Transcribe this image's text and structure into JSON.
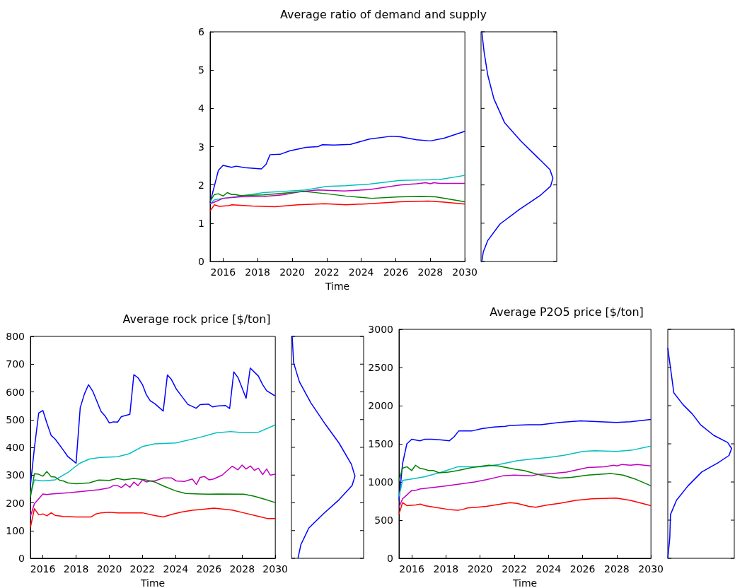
{
  "chart_data": [
    {
      "type": "line",
      "title": "Average ratio of demand and supply",
      "xlabel": "Time",
      "xlim": [
        2015.25,
        2030
      ],
      "xticks": [
        2016,
        2018,
        2020,
        2022,
        2024,
        2026,
        2028,
        2030
      ],
      "ylim": [
        0,
        6
      ],
      "yticks": [
        0,
        1,
        2,
        3,
        4,
        5,
        6
      ],
      "grid": false,
      "series": [
        {
          "color": "#0000ff",
          "x": [
            2015.25,
            2015.73,
            2016,
            2016.49,
            2016.76,
            2017.27,
            2018.22,
            2018.49,
            2018.72,
            2019.3,
            2019.85,
            2020.8,
            2021.48,
            2021.75,
            2022.43,
            2023.38,
            2024.47,
            2025.7,
            2026.25,
            2027.2,
            2028,
            2028.8,
            2030
          ],
          "values": [
            1.54,
            2.38,
            2.51,
            2.46,
            2.49,
            2.45,
            2.42,
            2.54,
            2.79,
            2.8,
            2.89,
            2.98,
            3.0,
            3.05,
            3.04,
            3.06,
            3.2,
            3.27,
            3.26,
            3.18,
            3.15,
            3.22,
            3.4
          ]
        },
        {
          "color": "#00bfbf",
          "x": [
            2015.25,
            2015.5,
            2016,
            2017,
            2018.35,
            2019.44,
            2020.8,
            2022,
            2023.1,
            2024.47,
            2026.25,
            2027.6,
            2028.55,
            2030
          ],
          "values": [
            1.5,
            1.61,
            1.65,
            1.71,
            1.8,
            1.83,
            1.87,
            1.96,
            1.98,
            2.02,
            2.12,
            2.13,
            2.14,
            2.25
          ]
        },
        {
          "color": "#bf00bf",
          "x": [
            2015.25,
            2015.5,
            2016,
            2017,
            2018.35,
            2019.44,
            2020.4,
            2021.5,
            2023,
            2024.47,
            2026.25,
            2027.2,
            2027.74,
            2028,
            2028.2,
            2028.55,
            2030
          ],
          "values": [
            1.51,
            1.55,
            1.65,
            1.69,
            1.7,
            1.74,
            1.82,
            1.87,
            1.84,
            1.88,
            2.0,
            2.03,
            2.06,
            2.03,
            2.06,
            2.04,
            2.04
          ]
        },
        {
          "color": "#008000",
          "x": [
            2015.25,
            2015.5,
            2015.73,
            2016,
            2016.25,
            2016.49,
            2016.72,
            2017,
            2018.35,
            2019.44,
            2020.67,
            2022,
            2023.1,
            2024.6,
            2026.25,
            2027.5,
            2028.3,
            2030
          ],
          "values": [
            1.57,
            1.75,
            1.77,
            1.71,
            1.8,
            1.75,
            1.75,
            1.72,
            1.74,
            1.78,
            1.83,
            1.77,
            1.71,
            1.65,
            1.69,
            1.7,
            1.69,
            1.56
          ]
        },
        {
          "color": "#ff0000",
          "x": [
            2015.25,
            2015.5,
            2015.77,
            2016.31,
            2016.52,
            2017.67,
            2019,
            2020.35,
            2021.9,
            2023.1,
            2024.47,
            2026.25,
            2027.9,
            2028.8,
            2030
          ],
          "values": [
            1.32,
            1.48,
            1.44,
            1.46,
            1.48,
            1.45,
            1.43,
            1.48,
            1.51,
            1.48,
            1.51,
            1.56,
            1.58,
            1.55,
            1.5
          ]
        }
      ]
    },
    {
      "type": "line",
      "title": "Average rock price [$/ton]",
      "xlabel": "Time",
      "xlim": [
        2015.25,
        2030
      ],
      "xticks": [
        2016,
        2018,
        2020,
        2022,
        2024,
        2026,
        2028,
        2030
      ],
      "ylim": [
        0,
        800
      ],
      "yticks": [
        0,
        100,
        200,
        300,
        400,
        500,
        600,
        700,
        800
      ],
      "grid": false,
      "series": [
        {
          "color": "#0000ff",
          "x": [
            2015.25,
            2015.49,
            2015.75,
            2016,
            2016.24,
            2016.5,
            2016.74,
            2017.23,
            2017.5,
            2018,
            2018.25,
            2018.5,
            2018.75,
            2019,
            2019.5,
            2019.75,
            2020,
            2020.25,
            2020.5,
            2020.73,
            2021.24,
            2021.48,
            2021.73,
            2022,
            2022.23,
            2022.47,
            2022.75,
            2023.25,
            2023.5,
            2023.74,
            2024.03,
            2024.24,
            2024.73,
            2025.23,
            2025.47,
            2025.97,
            2026.22,
            2026.5,
            2027,
            2027.25,
            2027.5,
            2027.75,
            2028.24,
            2028.49,
            2028.98,
            2029.24,
            2029.48,
            2029.97
          ],
          "values": [
            262,
            398,
            524,
            533,
            488,
            443,
            430,
            390,
            367,
            343,
            543,
            592,
            626,
            603,
            530,
            513,
            488,
            492,
            491,
            511,
            519,
            662,
            651,
            626,
            590,
            568,
            557,
            531,
            661,
            645,
            611,
            594,
            555,
            541,
            554,
            556,
            546,
            549,
            551,
            540,
            672,
            652,
            577,
            686,
            657,
            626,
            604,
            586
          ]
        },
        {
          "color": "#00bfbf",
          "x": [
            2015.25,
            2015.49,
            2016,
            2016.74,
            2017.5,
            2018.2,
            2018.8,
            2019.5,
            2020.5,
            2021.2,
            2022,
            2022.75,
            2024,
            2025.45,
            2026.43,
            2027.3,
            2028.1,
            2029,
            2030
          ],
          "values": [
            228,
            283,
            279,
            283,
            309,
            342,
            358,
            364,
            366,
            377,
            403,
            413,
            416,
            436,
            452,
            457,
            453,
            455,
            481
          ]
        },
        {
          "color": "#bf00bf",
          "x": [
            2015.25,
            2015.49,
            2016,
            2016.24,
            2016.5,
            2017.66,
            2019.35,
            2020,
            2020.24,
            2020.5,
            2020.73,
            2020.98,
            2021.24,
            2021.48,
            2021.73,
            2022,
            2022.23,
            2022.47,
            2022.75,
            2023.25,
            2023.74,
            2024.03,
            2024.52,
            2025,
            2025.25,
            2025.47,
            2025.73,
            2026,
            2026.29,
            2026.8,
            2027.4,
            2027.75,
            2028,
            2028.24,
            2028.5,
            2028.74,
            2028.98,
            2029.24,
            2029.48,
            2029.69,
            2030
          ],
          "values": [
            151,
            197,
            232,
            230,
            232,
            237,
            247,
            254,
            262,
            262,
            255,
            268,
            256,
            275,
            262,
            283,
            275,
            279,
            279,
            290,
            290,
            279,
            277,
            286,
            266,
            292,
            295,
            283,
            286,
            300,
            332,
            319,
            336,
            322,
            333,
            317,
            325,
            302,
            322,
            300,
            303
          ]
        },
        {
          "color": "#008000",
          "x": [
            2015.25,
            2015.49,
            2015.75,
            2016,
            2016.24,
            2016.5,
            2016.74,
            2017.02,
            2017.23,
            2017.5,
            2018,
            2018.8,
            2019.35,
            2020,
            2020.5,
            2020.9,
            2021.48,
            2022.18,
            2022.75,
            2023.3,
            2024,
            2024.6,
            2025.45,
            2026,
            2026.57,
            2028.1,
            2028.7,
            2029.3,
            2030
          ],
          "values": [
            220,
            305,
            303,
            296,
            313,
            294,
            293,
            281,
            279,
            272,
            269,
            272,
            282,
            281,
            288,
            283,
            288,
            283,
            275,
            260,
            243,
            234,
            232,
            231,
            232,
            231,
            224,
            214,
            201
          ]
        },
        {
          "color": "#ff0000",
          "x": [
            2015.25,
            2015.49,
            2015.75,
            2016,
            2016.24,
            2016.5,
            2016.74,
            2017.23,
            2018,
            2018.9,
            2019.2,
            2019.5,
            2020,
            2020.5,
            2021.3,
            2022,
            2022.75,
            2023.25,
            2023.74,
            2024.3,
            2025,
            2025.7,
            2026.3,
            2027.4,
            2028.1,
            2029,
            2029.55,
            2030
          ],
          "values": [
            111,
            179,
            157,
            160,
            153,
            164,
            155,
            151,
            149,
            149,
            160,
            164,
            166,
            164,
            164,
            164,
            154,
            149,
            158,
            166,
            173,
            177,
            181,
            174,
            164,
            151,
            143,
            143
          ]
        }
      ]
    },
    {
      "type": "line",
      "title": "Average P2O5 price [$/ton]",
      "xlabel": "Time",
      "xlim": [
        2015.25,
        2030
      ],
      "xticks": [
        2016,
        2018,
        2020,
        2022,
        2024,
        2026,
        2028,
        2030
      ],
      "ylim": [
        0,
        3000
      ],
      "yticks": [
        0,
        500,
        1000,
        1500,
        2000,
        2500,
        3000
      ],
      "grid": false,
      "series": [
        {
          "color": "#0000ff",
          "x": [
            2015.25,
            2015.46,
            2015.71,
            2016,
            2016.47,
            2016.77,
            2017.18,
            2017.74,
            2018.2,
            2018.47,
            2018.75,
            2019.26,
            2019.54,
            2020.1,
            2020.8,
            2021.47,
            2021.74,
            2022.85,
            2023.54,
            2024.64,
            2025.9,
            2027,
            2027.97,
            2028.8,
            2030
          ],
          "values": [
            760,
            1240,
            1500,
            1560,
            1540,
            1560,
            1560,
            1550,
            1540,
            1590,
            1670,
            1670,
            1670,
            1700,
            1720,
            1730,
            1740,
            1750,
            1750,
            1780,
            1800,
            1790,
            1780,
            1790,
            1820
          ]
        },
        {
          "color": "#00bfbf",
          "x": [
            2015.25,
            2015.46,
            2016,
            2016.77,
            2017.74,
            2018.7,
            2019.26,
            2020.1,
            2021.1,
            2022.2,
            2023.03,
            2023.95,
            2024.9,
            2026.03,
            2026.7,
            2027.97,
            2028.94,
            2030
          ],
          "values": [
            810,
            1020,
            1040,
            1070,
            1130,
            1200,
            1200,
            1200,
            1230,
            1280,
            1300,
            1320,
            1350,
            1400,
            1410,
            1400,
            1420,
            1470
          ]
        },
        {
          "color": "#bf00bf",
          "x": [
            2015.25,
            2015.46,
            2015.71,
            2016,
            2016.22,
            2016.5,
            2017.33,
            2018.02,
            2018.7,
            2019.67,
            2020.36,
            2021.33,
            2022,
            2022.98,
            2023.4,
            2024.23,
            2025.06,
            2026.3,
            2027.27,
            2027.82,
            2028.02,
            2028.3,
            2028.8,
            2029.2,
            2030
          ],
          "values": [
            670,
            780,
            830,
            890,
            890,
            910,
            930,
            950,
            970,
            1000,
            1030,
            1080,
            1090,
            1080,
            1100,
            1110,
            1130,
            1190,
            1200,
            1220,
            1210,
            1230,
            1220,
            1230,
            1210
          ]
        },
        {
          "color": "#008000",
          "x": [
            2015.25,
            2015.46,
            2015.71,
            2016,
            2016.22,
            2016.47,
            2016.71,
            2016.98,
            2017.26,
            2017.6,
            2018.15,
            2018.7,
            2019.53,
            2020.5,
            2021.05,
            2022,
            2022.56,
            2023.54,
            2024.64,
            2025.33,
            2026.3,
            2027.68,
            2028.37,
            2029.06,
            2030
          ],
          "values": [
            1020,
            1180,
            1200,
            1150,
            1220,
            1180,
            1170,
            1150,
            1150,
            1120,
            1130,
            1150,
            1190,
            1220,
            1210,
            1170,
            1150,
            1090,
            1050,
            1060,
            1090,
            1110,
            1090,
            1040,
            950
          ]
        },
        {
          "color": "#ff0000",
          "x": [
            2015.25,
            2015.46,
            2015.71,
            2016.22,
            2016.5,
            2016.77,
            2017.33,
            2018.15,
            2018.7,
            2018.98,
            2019.26,
            2019.81,
            2020.36,
            2021.2,
            2021.74,
            2022.16,
            2022.85,
            2023.26,
            2023.95,
            2024.64,
            2025.6,
            2026.56,
            2027.97,
            2028.8,
            2030
          ],
          "values": [
            580,
            730,
            690,
            700,
            710,
            690,
            670,
            640,
            630,
            640,
            660,
            670,
            680,
            710,
            730,
            720,
            680,
            670,
            700,
            720,
            760,
            780,
            790,
            760,
            690
          ]
        }
      ]
    }
  ]
}
